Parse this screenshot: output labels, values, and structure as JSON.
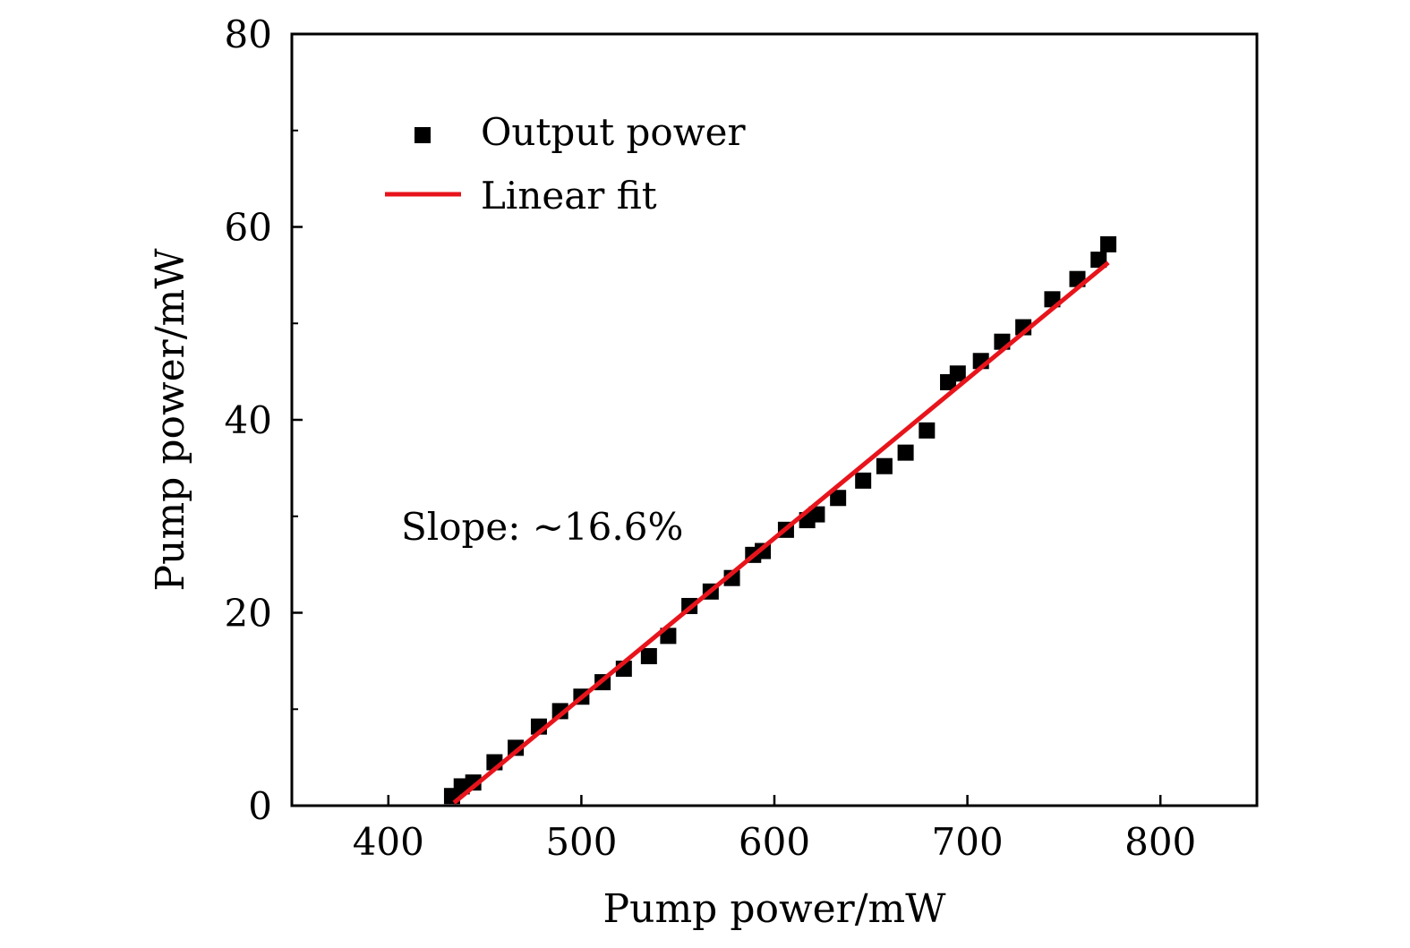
{
  "chart_data": {
    "type": "scatter",
    "title": "",
    "xlabel": "Pump power/mW",
    "ylabel": "Pump power/mW",
    "xlim": [
      350,
      850
    ],
    "ylim": [
      0,
      80
    ],
    "x_ticks": [
      "400",
      "500",
      "600",
      "700",
      "800"
    ],
    "y_ticks": [
      "0",
      "20",
      "40",
      "60",
      "80"
    ],
    "x_tick_values": [
      400,
      500,
      600,
      700,
      800
    ],
    "y_tick_values": [
      0,
      20,
      40,
      60,
      80
    ],
    "x_minor_ticks": [],
    "y_minor_ticks": [
      10,
      30,
      50,
      70
    ],
    "grid": false,
    "legend_position": "top-left",
    "annotation": "Slope: ~16.6%",
    "series": [
      {
        "name": "Output power",
        "kind": "scatter",
        "marker": "square",
        "color": "#000000",
        "x": [
          433,
          438,
          444,
          455,
          466,
          478,
          489,
          500,
          511,
          522,
          535,
          545,
          556,
          567,
          578,
          589,
          594,
          606,
          617,
          622,
          633,
          646,
          657,
          668,
          679,
          690,
          695,
          707,
          718,
          729,
          744,
          757,
          768,
          773
        ],
        "y": [
          1.0,
          2.0,
          2.4,
          4.5,
          6.0,
          8.2,
          9.8,
          11.3,
          12.8,
          14.2,
          15.5,
          17.6,
          20.7,
          22.2,
          23.6,
          26.0,
          26.4,
          28.6,
          29.6,
          30.2,
          31.9,
          33.7,
          35.2,
          36.6,
          38.9,
          43.9,
          44.8,
          46.1,
          48.1,
          49.6,
          52.5,
          54.6,
          56.6,
          58.2
        ]
      },
      {
        "name": "Linear fit",
        "kind": "line",
        "color": "#e8141b",
        "x": [
          434,
          773
        ],
        "y": [
          0.3,
          56.3
        ]
      }
    ]
  }
}
